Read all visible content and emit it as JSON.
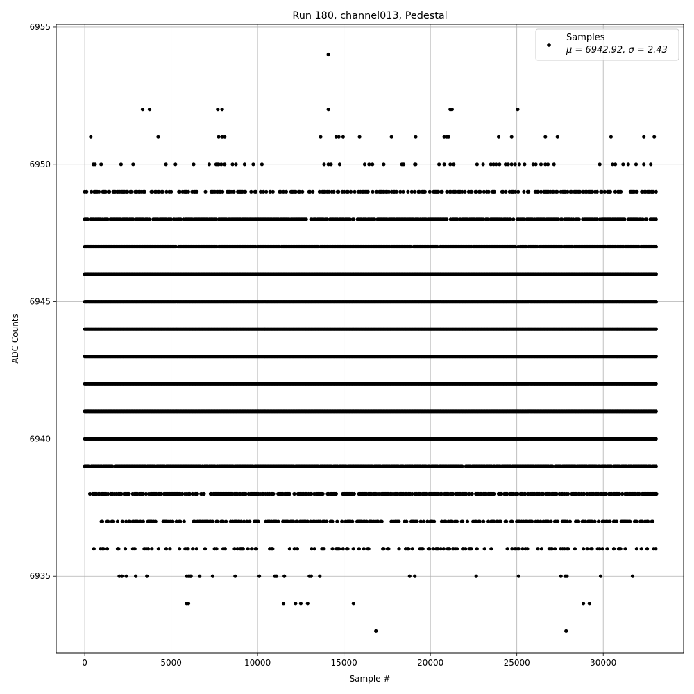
{
  "chart_data": {
    "type": "scatter",
    "title": "Run 180, channel013, Pedestal",
    "xlabel": "Sample #",
    "ylabel": "ADC Counts",
    "xlim": [
      -1650,
      34650
    ],
    "ylim": [
      6932.2,
      6955.1
    ],
    "x_ticks": [
      0,
      5000,
      10000,
      15000,
      20000,
      25000,
      30000
    ],
    "y_ticks": [
      6935,
      6940,
      6945,
      6950,
      6955
    ],
    "grid": true,
    "legend": {
      "position": "upper right",
      "series_label": "Samples",
      "stats_label": "μ = 6942.92, σ = 2.43"
    },
    "marker_color": "#000000",
    "series": [
      {
        "name": "Samples",
        "levels": [
          {
            "y": 6933,
            "x": [
              16850,
              27850
            ]
          },
          {
            "y": 6934,
            "x": [
              5900,
              6000,
              11500,
              12200,
              12500,
              12900,
              15550,
              28850,
              29200
            ]
          },
          {
            "y": 6935,
            "x": [
              2000,
              2150,
              2400,
              2950,
              3600,
              5900,
              6000,
              6100,
              6150,
              6650,
              7400,
              8700,
              10100,
              11000,
              11100,
              11550,
              13000,
              13100,
              13600,
              18800,
              19100,
              22650,
              25100,
              27550,
              27800,
              27900,
              29850,
              31700
            ]
          },
          {
            "y": 6952,
            "x": [
              3350,
              3750,
              7700,
              7950,
              14100,
              21150,
              21250,
              25050
            ]
          },
          {
            "y": 6954,
            "x": [
              14100
            ]
          },
          {
            "y": 6951,
            "x": [
              350,
              4250,
              7750,
              7950,
              8100,
              13650,
              14550,
              14700,
              14950,
              15900,
              17750,
              19150,
              20800,
              20950,
              21050,
              23950,
              24700,
              26650,
              27350,
              30450,
              32350,
              32950
            ]
          },
          {
            "y": 6950,
            "x": [
              500,
              600,
              950,
              2100,
              2800,
              4700,
              5250,
              6300,
              7200,
              7600,
              7700,
              7750,
              7900,
              8100,
              8550,
              8750,
              9250,
              9750,
              10250,
              13850,
              14100,
              14250,
              14750,
              16200,
              16450,
              16650,
              17300,
              18350,
              18450,
              19100,
              19150,
              20500,
              20800,
              21150,
              21350,
              22700,
              23050,
              23500,
              23650,
              23800,
              24000,
              24350,
              24500,
              24700,
              24900,
              25150,
              25450,
              25950,
              26100,
              26400,
              26650,
              26800,
              27150,
              29800,
              30550,
              30700,
              31150,
              31450,
              31900,
              32350,
              32750
            ]
          }
        ],
        "dense_bands": [
          {
            "y": 6936,
            "x_start": 200,
            "x_end": 33100,
            "density": 0.25
          },
          {
            "y": 6937,
            "x_start": 800,
            "x_end": 33050,
            "density": 0.45
          },
          {
            "y": 6938,
            "x_start": 300,
            "x_end": 33100,
            "density": 0.7
          },
          {
            "y": 6939,
            "x_start": 0,
            "x_end": 33100,
            "density": 0.9
          },
          {
            "y": 6940,
            "x_start": 0,
            "x_end": 33100,
            "density": 1.0
          },
          {
            "y": 6941,
            "x_start": 0,
            "x_end": 33100,
            "density": 1.0
          },
          {
            "y": 6942,
            "x_start": 0,
            "x_end": 33100,
            "density": 1.0
          },
          {
            "y": 6943,
            "x_start": 0,
            "x_end": 33100,
            "density": 1.0
          },
          {
            "y": 6944,
            "x_start": 0,
            "x_end": 33100,
            "density": 1.0
          },
          {
            "y": 6945,
            "x_start": 0,
            "x_end": 33100,
            "density": 1.0
          },
          {
            "y": 6946,
            "x_start": 0,
            "x_end": 33100,
            "density": 1.0
          },
          {
            "y": 6947,
            "x_start": 0,
            "x_end": 33100,
            "density": 0.95
          },
          {
            "y": 6948,
            "x_start": 0,
            "x_end": 33100,
            "density": 0.8
          },
          {
            "y": 6949,
            "x_start": 0,
            "x_end": 33100,
            "density": 0.45
          }
        ]
      }
    ]
  }
}
